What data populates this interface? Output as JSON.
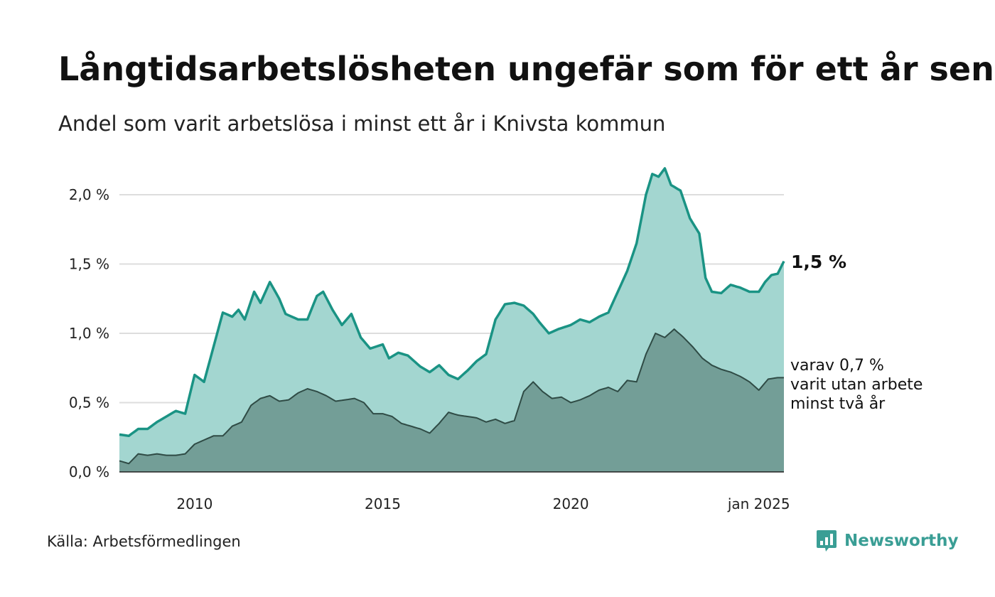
{
  "header": {
    "title": "Långtidsarbetslösheten ungefär som för ett år sen",
    "subtitle": "Andel som varit arbetslösa i minst ett år i Knivsta kommun"
  },
  "footer": {
    "source": "Källa: Arbetsförmedlingen",
    "brand": "Newsworthy"
  },
  "colors": {
    "series1_line": "#1a9384",
    "series1_fill": "#a3d6d0",
    "series2_line": "#2f4b45",
    "series2_fill": "#739e97",
    "grid": "#dddddd",
    "brand": "#3a9e95"
  },
  "chart_data": {
    "type": "area",
    "x_start": "2008-01",
    "frequency": "monthly",
    "x_ticks": [
      {
        "label": "2010",
        "x": "2010-01"
      },
      {
        "label": "2015",
        "x": "2015-01"
      },
      {
        "label": "2020",
        "x": "2020-01"
      },
      {
        "label": "jan 2025",
        "x": "2025-01"
      }
    ],
    "y_ticks": [
      {
        "label": "0,0 %",
        "value": 0.0
      },
      {
        "label": "0,5 %",
        "value": 0.5
      },
      {
        "label": "1,0 %",
        "value": 1.0
      },
      {
        "label": "1,5 %",
        "value": 1.5
      },
      {
        "label": "2,0 %",
        "value": 2.0
      }
    ],
    "ylim": [
      0,
      2.2
    ],
    "grid": true,
    "end_labels": {
      "series1": "1,5 %",
      "series2_lines": [
        "varav 0,7 %",
        "varit utan arbete",
        "minst två år"
      ]
    },
    "series": [
      {
        "id": "series1",
        "anchors": [
          [
            "2008-01",
            0.27
          ],
          [
            "2008-04",
            0.26
          ],
          [
            "2008-07",
            0.31
          ],
          [
            "2008-10",
            0.31
          ],
          [
            "2009-01",
            0.36
          ],
          [
            "2009-04",
            0.4
          ],
          [
            "2009-07",
            0.44
          ],
          [
            "2009-10",
            0.42
          ],
          [
            "2010-01",
            0.7
          ],
          [
            "2010-04",
            0.65
          ],
          [
            "2010-07",
            0.9
          ],
          [
            "2010-10",
            1.15
          ],
          [
            "2011-01",
            1.12
          ],
          [
            "2011-03",
            1.17
          ],
          [
            "2011-05",
            1.1
          ],
          [
            "2011-08",
            1.3
          ],
          [
            "2011-10",
            1.22
          ],
          [
            "2012-01",
            1.37
          ],
          [
            "2012-04",
            1.25
          ],
          [
            "2012-06",
            1.14
          ],
          [
            "2012-10",
            1.1
          ],
          [
            "2013-01",
            1.1
          ],
          [
            "2013-04",
            1.27
          ],
          [
            "2013-06",
            1.3
          ],
          [
            "2013-09",
            1.17
          ],
          [
            "2013-12",
            1.06
          ],
          [
            "2014-03",
            1.14
          ],
          [
            "2014-06",
            0.97
          ],
          [
            "2014-09",
            0.89
          ],
          [
            "2015-01",
            0.92
          ],
          [
            "2015-03",
            0.82
          ],
          [
            "2015-06",
            0.86
          ],
          [
            "2015-09",
            0.84
          ],
          [
            "2016-01",
            0.76
          ],
          [
            "2016-04",
            0.72
          ],
          [
            "2016-07",
            0.77
          ],
          [
            "2016-10",
            0.7
          ],
          [
            "2017-01",
            0.67
          ],
          [
            "2017-04",
            0.73
          ],
          [
            "2017-07",
            0.8
          ],
          [
            "2017-10",
            0.85
          ],
          [
            "2018-01",
            1.1
          ],
          [
            "2018-04",
            1.21
          ],
          [
            "2018-07",
            1.22
          ],
          [
            "2018-10",
            1.2
          ],
          [
            "2019-01",
            1.14
          ],
          [
            "2019-03",
            1.08
          ],
          [
            "2019-06",
            1.0
          ],
          [
            "2019-09",
            1.03
          ],
          [
            "2020-01",
            1.06
          ],
          [
            "2020-04",
            1.1
          ],
          [
            "2020-07",
            1.08
          ],
          [
            "2020-10",
            1.12
          ],
          [
            "2021-01",
            1.15
          ],
          [
            "2021-04",
            1.3
          ],
          [
            "2021-07",
            1.45
          ],
          [
            "2021-10",
            1.65
          ],
          [
            "2022-01",
            2.0
          ],
          [
            "2022-03",
            2.15
          ],
          [
            "2022-05",
            2.13
          ],
          [
            "2022-07",
            2.19
          ],
          [
            "2022-09",
            2.07
          ],
          [
            "2022-12",
            2.03
          ],
          [
            "2023-03",
            1.83
          ],
          [
            "2023-06",
            1.72
          ],
          [
            "2023-08",
            1.4
          ],
          [
            "2023-10",
            1.3
          ],
          [
            "2024-01",
            1.29
          ],
          [
            "2024-04",
            1.35
          ],
          [
            "2024-07",
            1.33
          ],
          [
            "2024-10",
            1.3
          ],
          [
            "2025-01",
            1.3
          ],
          [
            "2025-03",
            1.37
          ],
          [
            "2025-05",
            1.42
          ],
          [
            "2025-07",
            1.43
          ],
          [
            "2025-09",
            1.52
          ]
        ]
      },
      {
        "id": "series2",
        "anchors": [
          [
            "2008-01",
            0.08
          ],
          [
            "2008-04",
            0.06
          ],
          [
            "2008-07",
            0.13
          ],
          [
            "2008-10",
            0.12
          ],
          [
            "2009-01",
            0.13
          ],
          [
            "2009-04",
            0.12
          ],
          [
            "2009-07",
            0.12
          ],
          [
            "2009-10",
            0.13
          ],
          [
            "2010-01",
            0.2
          ],
          [
            "2010-04",
            0.23
          ],
          [
            "2010-07",
            0.26
          ],
          [
            "2010-10",
            0.26
          ],
          [
            "2011-01",
            0.33
          ],
          [
            "2011-04",
            0.36
          ],
          [
            "2011-07",
            0.48
          ],
          [
            "2011-10",
            0.53
          ],
          [
            "2012-01",
            0.55
          ],
          [
            "2012-04",
            0.51
          ],
          [
            "2012-07",
            0.52
          ],
          [
            "2012-10",
            0.57
          ],
          [
            "2013-01",
            0.6
          ],
          [
            "2013-04",
            0.58
          ],
          [
            "2013-07",
            0.55
          ],
          [
            "2013-10",
            0.51
          ],
          [
            "2014-01",
            0.52
          ],
          [
            "2014-04",
            0.53
          ],
          [
            "2014-07",
            0.5
          ],
          [
            "2014-10",
            0.42
          ],
          [
            "2015-01",
            0.42
          ],
          [
            "2015-04",
            0.4
          ],
          [
            "2015-07",
            0.35
          ],
          [
            "2015-10",
            0.33
          ],
          [
            "2016-01",
            0.31
          ],
          [
            "2016-04",
            0.28
          ],
          [
            "2016-07",
            0.35
          ],
          [
            "2016-10",
            0.43
          ],
          [
            "2017-01",
            0.41
          ],
          [
            "2017-04",
            0.4
          ],
          [
            "2017-07",
            0.39
          ],
          [
            "2017-10",
            0.36
          ],
          [
            "2018-01",
            0.38
          ],
          [
            "2018-04",
            0.35
          ],
          [
            "2018-07",
            0.37
          ],
          [
            "2018-10",
            0.58
          ],
          [
            "2019-01",
            0.65
          ],
          [
            "2019-04",
            0.58
          ],
          [
            "2019-07",
            0.53
          ],
          [
            "2019-10",
            0.54
          ],
          [
            "2020-01",
            0.5
          ],
          [
            "2020-04",
            0.52
          ],
          [
            "2020-07",
            0.55
          ],
          [
            "2020-10",
            0.59
          ],
          [
            "2021-01",
            0.61
          ],
          [
            "2021-04",
            0.58
          ],
          [
            "2021-07",
            0.66
          ],
          [
            "2021-10",
            0.65
          ],
          [
            "2022-01",
            0.85
          ],
          [
            "2022-04",
            1.0
          ],
          [
            "2022-07",
            0.97
          ],
          [
            "2022-10",
            1.03
          ],
          [
            "2023-01",
            0.97
          ],
          [
            "2023-04",
            0.9
          ],
          [
            "2023-07",
            0.82
          ],
          [
            "2023-10",
            0.77
          ],
          [
            "2024-01",
            0.74
          ],
          [
            "2024-04",
            0.72
          ],
          [
            "2024-07",
            0.69
          ],
          [
            "2024-10",
            0.65
          ],
          [
            "2025-01",
            0.59
          ],
          [
            "2025-04",
            0.67
          ],
          [
            "2025-07",
            0.68
          ],
          [
            "2025-09",
            0.68
          ]
        ]
      }
    ]
  }
}
